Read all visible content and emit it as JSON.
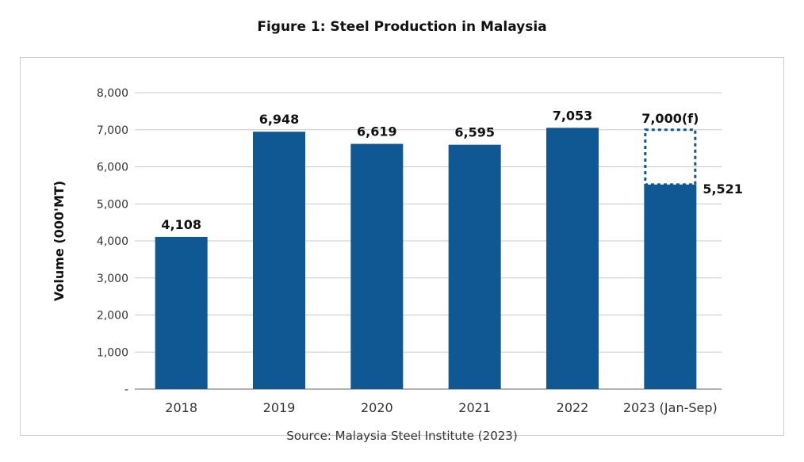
{
  "chart_data": {
    "type": "bar",
    "title": "Figure 1: Steel Production in Malaysia",
    "source": "Source: Malaysia Steel Institute (2023)",
    "ylabel": "Volume (000'MT)",
    "xlabel": "",
    "ylim": [
      0,
      8000
    ],
    "yticks": [
      0,
      1000,
      2000,
      3000,
      4000,
      5000,
      6000,
      7000,
      8000
    ],
    "ytick_labels": [
      "-",
      "1,000",
      "2,000",
      "3,000",
      "4,000",
      "5,000",
      "6,000",
      "7,000",
      "8,000"
    ],
    "grid": true,
    "categories": [
      "2018",
      "2019",
      "2020",
      "2021",
      "2022",
      "2023 (Jan-Sep)"
    ],
    "values": [
      4108,
      6948,
      6619,
      6595,
      7053,
      5521
    ],
    "data_labels": [
      "4,108",
      "6,948",
      "6,619",
      "6,595",
      "7,053",
      "5,521"
    ],
    "forecast": {
      "category": "2023 (Jan-Sep)",
      "value": 7000,
      "label": "7,000(f)",
      "style": "dotted outline"
    },
    "colors": {
      "bar": "#0f5894",
      "grid": "#c8c8c8",
      "axis": "#888888"
    }
  }
}
